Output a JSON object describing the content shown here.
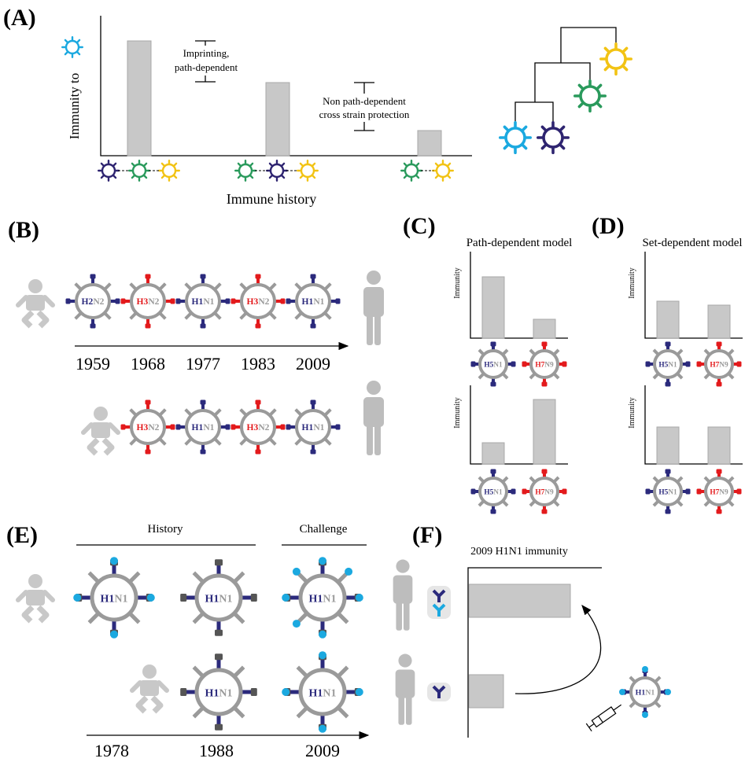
{
  "panel_a": {
    "label": "(A)",
    "y_axis": "Immunity to",
    "x_axis": "Immune history",
    "annotation_1": [
      "Imprinting,",
      "path-dependent"
    ],
    "annotation_2": [
      "Non path-dependent",
      "cross strain protection"
    ]
  },
  "panel_b": {
    "label": "(B)",
    "years": [
      "1959",
      "1968",
      "1977",
      "1983",
      "2009"
    ],
    "row_1": [
      {
        "h": "H2",
        "n": "N2",
        "color": "#2b2a7c"
      },
      {
        "h": "H3",
        "n": "N2",
        "color": "#e31a1c"
      },
      {
        "h": "H1",
        "n": "N1",
        "color": "#2b2a7c"
      },
      {
        "h": "H3",
        "n": "N2",
        "color": "#e31a1c"
      },
      {
        "h": "H1",
        "n": "N1",
        "color": "#2b2a7c"
      }
    ],
    "row_2": [
      {
        "h": "H3",
        "n": "N2",
        "color": "#e31a1c"
      },
      {
        "h": "H1",
        "n": "N1",
        "color": "#2b2a7c"
      },
      {
        "h": "H3",
        "n": "N2",
        "color": "#e31a1c"
      },
      {
        "h": "H1",
        "n": "N1",
        "color": "#2b2a7c"
      }
    ]
  },
  "panel_c": {
    "label": "(C)",
    "title": "Path-dependent model",
    "y_axis": "Immunity",
    "viruses": [
      {
        "h": "H5",
        "n": "N1",
        "color": "#2b2a7c"
      },
      {
        "h": "H7",
        "n": "N9",
        "color": "#e31a1c"
      }
    ]
  },
  "panel_d": {
    "label": "(D)",
    "title": "Set-dependent model",
    "y_axis": "Immunity",
    "viruses": [
      {
        "h": "H5",
        "n": "N1",
        "color": "#2b2a7c"
      },
      {
        "h": "H7",
        "n": "N9",
        "color": "#e31a1c"
      }
    ]
  },
  "panel_e": {
    "label": "(E)",
    "history": "History",
    "challenge": "Challenge",
    "years": [
      "1978",
      "1988",
      "2009"
    ],
    "virus": {
      "h": "H1",
      "n": "N1",
      "color": "#2b2a7c"
    }
  },
  "panel_f": {
    "label": "(F)",
    "title": "2009 H1N1 immunity"
  }
}
